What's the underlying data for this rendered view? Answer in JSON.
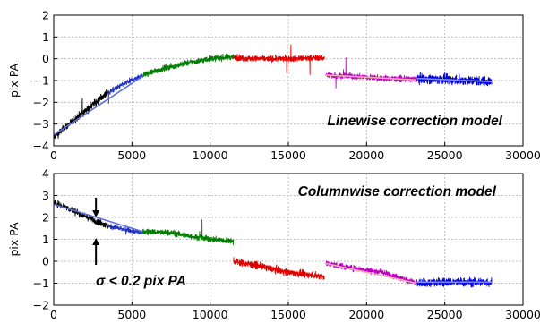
{
  "chart_data": [
    {
      "type": "line",
      "annotation": "Linewise correction model",
      "xlabel": "",
      "ylabel": "pix PA",
      "xlim": [
        0,
        30000
      ],
      "ylim": [
        -4,
        2
      ],
      "xticks": [
        0,
        5000,
        10000,
        15000,
        20000,
        25000,
        30000
      ],
      "yticks": [
        -4,
        -3,
        -2,
        -1,
        0,
        1,
        2
      ],
      "xtick_labels": [
        "0",
        "5000",
        "10000",
        "15000",
        "20000",
        "25000",
        "30000"
      ],
      "ytick_labels": [
        "−4",
        "−3",
        "−2",
        "−1",
        "0",
        "1",
        "2"
      ],
      "grid": true,
      "series": [
        {
          "color": "#000000",
          "x": [
            0,
            1000,
            2000,
            3000,
            3500
          ],
          "y": [
            -3.6,
            -3.0,
            -2.4,
            -1.8,
            -1.55
          ],
          "noise": 0.18
        },
        {
          "color": "#2030c0",
          "x": [
            3500,
            4500,
            5700
          ],
          "y": [
            -1.55,
            -1.15,
            -0.75
          ],
          "noise": 0.12
        },
        {
          "color": "#008000",
          "x": [
            5700,
            7000,
            8500,
            10000,
            11500
          ],
          "y": [
            -0.75,
            -0.45,
            -0.2,
            0.0,
            0.1
          ],
          "noise": 0.14
        },
        {
          "color": "#e00000",
          "x": [
            11500,
            13000,
            15000,
            17300
          ],
          "y": [
            0.05,
            0.0,
            0.0,
            0.05
          ],
          "noise": 0.14
        },
        {
          "color": "#c000c0",
          "x": [
            17400,
            19000,
            21000,
            23200
          ],
          "y": [
            -0.75,
            -0.8,
            -0.9,
            -0.95
          ],
          "noise": 0.14
        },
        {
          "color": "#0000e0",
          "x": [
            23200,
            25000,
            28000
          ],
          "y": [
            -0.9,
            -0.95,
            -1.05
          ],
          "noise": 0.22
        }
      ],
      "fits": [
        {
          "color": "#6070e0",
          "x": [
            0,
            5700
          ],
          "y": [
            -3.5,
            -0.8
          ]
        },
        {
          "color": "#e8b0b0",
          "x": [
            17400,
            23200
          ],
          "y": [
            -0.75,
            -0.97
          ]
        },
        {
          "color": "#8090e8",
          "x": [
            23200,
            28000
          ],
          "y": [
            -0.9,
            -1.05
          ]
        }
      ]
    },
    {
      "type": "line",
      "annotation": "Columnwise correction model",
      "xlabel": "",
      "ylabel": "pix PA",
      "xlim": [
        0,
        30000
      ],
      "ylim": [
        -2,
        4
      ],
      "xticks": [
        0,
        5000,
        10000,
        15000,
        20000,
        25000,
        30000
      ],
      "yticks": [
        -2,
        -1,
        0,
        1,
        2,
        3,
        4
      ],
      "xtick_labels": [
        "0",
        "5000",
        "10000",
        "15000",
        "20000",
        "25000",
        "30000"
      ],
      "ytick_labels": [
        "−2",
        "−1",
        "0",
        "1",
        "2",
        "3",
        "4"
      ],
      "grid": true,
      "sigma_note": "σ < 0.2 pix PA",
      "sigma_at_x": 2700,
      "series": [
        {
          "color": "#000000",
          "x": [
            0,
            1000,
            2000,
            3000,
            3500
          ],
          "y": [
            2.7,
            2.4,
            2.05,
            1.75,
            1.6
          ],
          "noise": 0.15
        },
        {
          "color": "#2030c0",
          "x": [
            3500,
            4500,
            5700
          ],
          "y": [
            1.6,
            1.45,
            1.3
          ],
          "noise": 0.12
        },
        {
          "color": "#008000",
          "x": [
            5700,
            7500,
            9500,
            11500
          ],
          "y": [
            1.35,
            1.3,
            1.05,
            0.9
          ],
          "noise": 0.14
        },
        {
          "color": "#e00000",
          "x": [
            11500,
            13000,
            15000,
            17300
          ],
          "y": [
            0.0,
            -0.2,
            -0.5,
            -0.7
          ],
          "noise": 0.16
        },
        {
          "color": "#c000c0",
          "x": [
            17400,
            19000,
            21000,
            23200
          ],
          "y": [
            -0.1,
            -0.3,
            -0.5,
            -1.0
          ],
          "noise": 0.14
        },
        {
          "color": "#0000e0",
          "x": [
            23200,
            25000,
            28000
          ],
          "y": [
            -1.0,
            -0.95,
            -0.95
          ],
          "noise": 0.2
        }
      ],
      "fits": [
        {
          "color": "#6070e0",
          "x": [
            0,
            5700
          ],
          "y": [
            2.6,
            1.35
          ]
        },
        {
          "color": "#e8b0b0",
          "x": [
            17400,
            23200
          ],
          "y": [
            -0.1,
            -1.0
          ]
        },
        {
          "color": "#8090e8",
          "x": [
            23200,
            28000
          ],
          "y": [
            -0.95,
            -0.95
          ]
        }
      ]
    }
  ]
}
